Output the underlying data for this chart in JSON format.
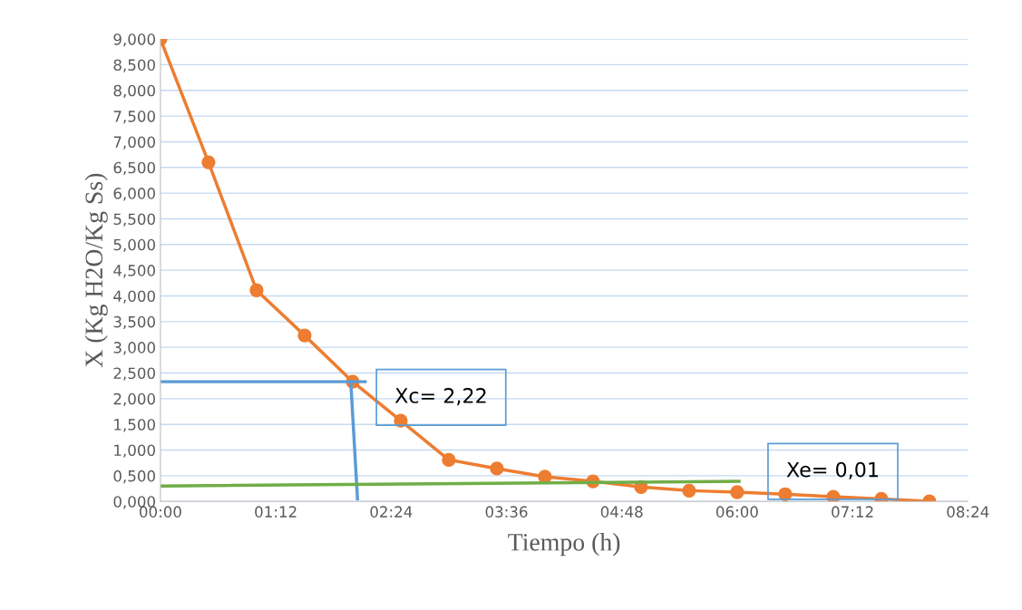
{
  "chart_data": {
    "type": "line",
    "xlabel": "Tiempo (h)",
    "ylabel": "X (Kg H2O/Kg Ss)",
    "xlim": [
      0,
      8.4
    ],
    "ylim": [
      0,
      9
    ],
    "xticks": [
      {
        "value": 0,
        "label": "00:00"
      },
      {
        "value": 1.2,
        "label": "01:12"
      },
      {
        "value": 2.4,
        "label": "02:24"
      },
      {
        "value": 3.6,
        "label": "03:36"
      },
      {
        "value": 4.8,
        "label": "04:48"
      },
      {
        "value": 6.0,
        "label": "06:00"
      },
      {
        "value": 7.2,
        "label": "07:12"
      },
      {
        "value": 8.4,
        "label": "08:24"
      }
    ],
    "yticks": [
      {
        "value": 0,
        "label": "0,000"
      },
      {
        "value": 0.5,
        "label": "0,500"
      },
      {
        "value": 1,
        "label": "1,000"
      },
      {
        "value": 1.5,
        "label": "1,500"
      },
      {
        "value": 2,
        "label": "2,000"
      },
      {
        "value": 2.5,
        "label": "2,500"
      },
      {
        "value": 3,
        "label": "3,000"
      },
      {
        "value": 3.5,
        "label": "3,500"
      },
      {
        "value": 4,
        "label": "4,000"
      },
      {
        "value": 4.5,
        "label": "4,500"
      },
      {
        "value": 5,
        "label": "5,000"
      },
      {
        "value": 5.5,
        "label": "5,500"
      },
      {
        "value": 6,
        "label": "6,000"
      },
      {
        "value": 6.5,
        "label": "6,500"
      },
      {
        "value": 7,
        "label": "7,000"
      },
      {
        "value": 7.5,
        "label": "7,500"
      },
      {
        "value": 8,
        "label": "8,000"
      },
      {
        "value": 8.5,
        "label": "8,500"
      },
      {
        "value": 9,
        "label": "9,000"
      }
    ],
    "grid": "y",
    "series": [
      {
        "color": "#ed7d31",
        "marker": "circle",
        "x": [
          0,
          0.5,
          1.0,
          1.5,
          2.0,
          2.5,
          3.0,
          3.5,
          4.0,
          4.5,
          5.0,
          5.5,
          6.0,
          6.5,
          7.0,
          7.5,
          8.0
        ],
        "values": [
          9.0,
          6.6,
          4.11,
          3.23,
          2.33,
          1.57,
          0.81,
          0.64,
          0.48,
          0.39,
          0.28,
          0.21,
          0.18,
          0.14,
          0.09,
          0.05,
          0.0
        ]
      },
      {
        "color": "#5b9bd5",
        "marker": "none",
        "x": [
          0,
          2.13
        ],
        "values": [
          2.33,
          2.33
        ]
      },
      {
        "color": "#5b9bd5",
        "marker": "none",
        "x": [
          1.98,
          2.05
        ],
        "values": [
          2.33,
          0.05
        ]
      },
      {
        "color": "#70ad47",
        "marker": "none",
        "x": [
          0,
          6.02
        ],
        "values": [
          0.3,
          0.39
        ]
      }
    ],
    "annotations": [
      "Xc= 2,22",
      "Xe= 0,01"
    ]
  }
}
